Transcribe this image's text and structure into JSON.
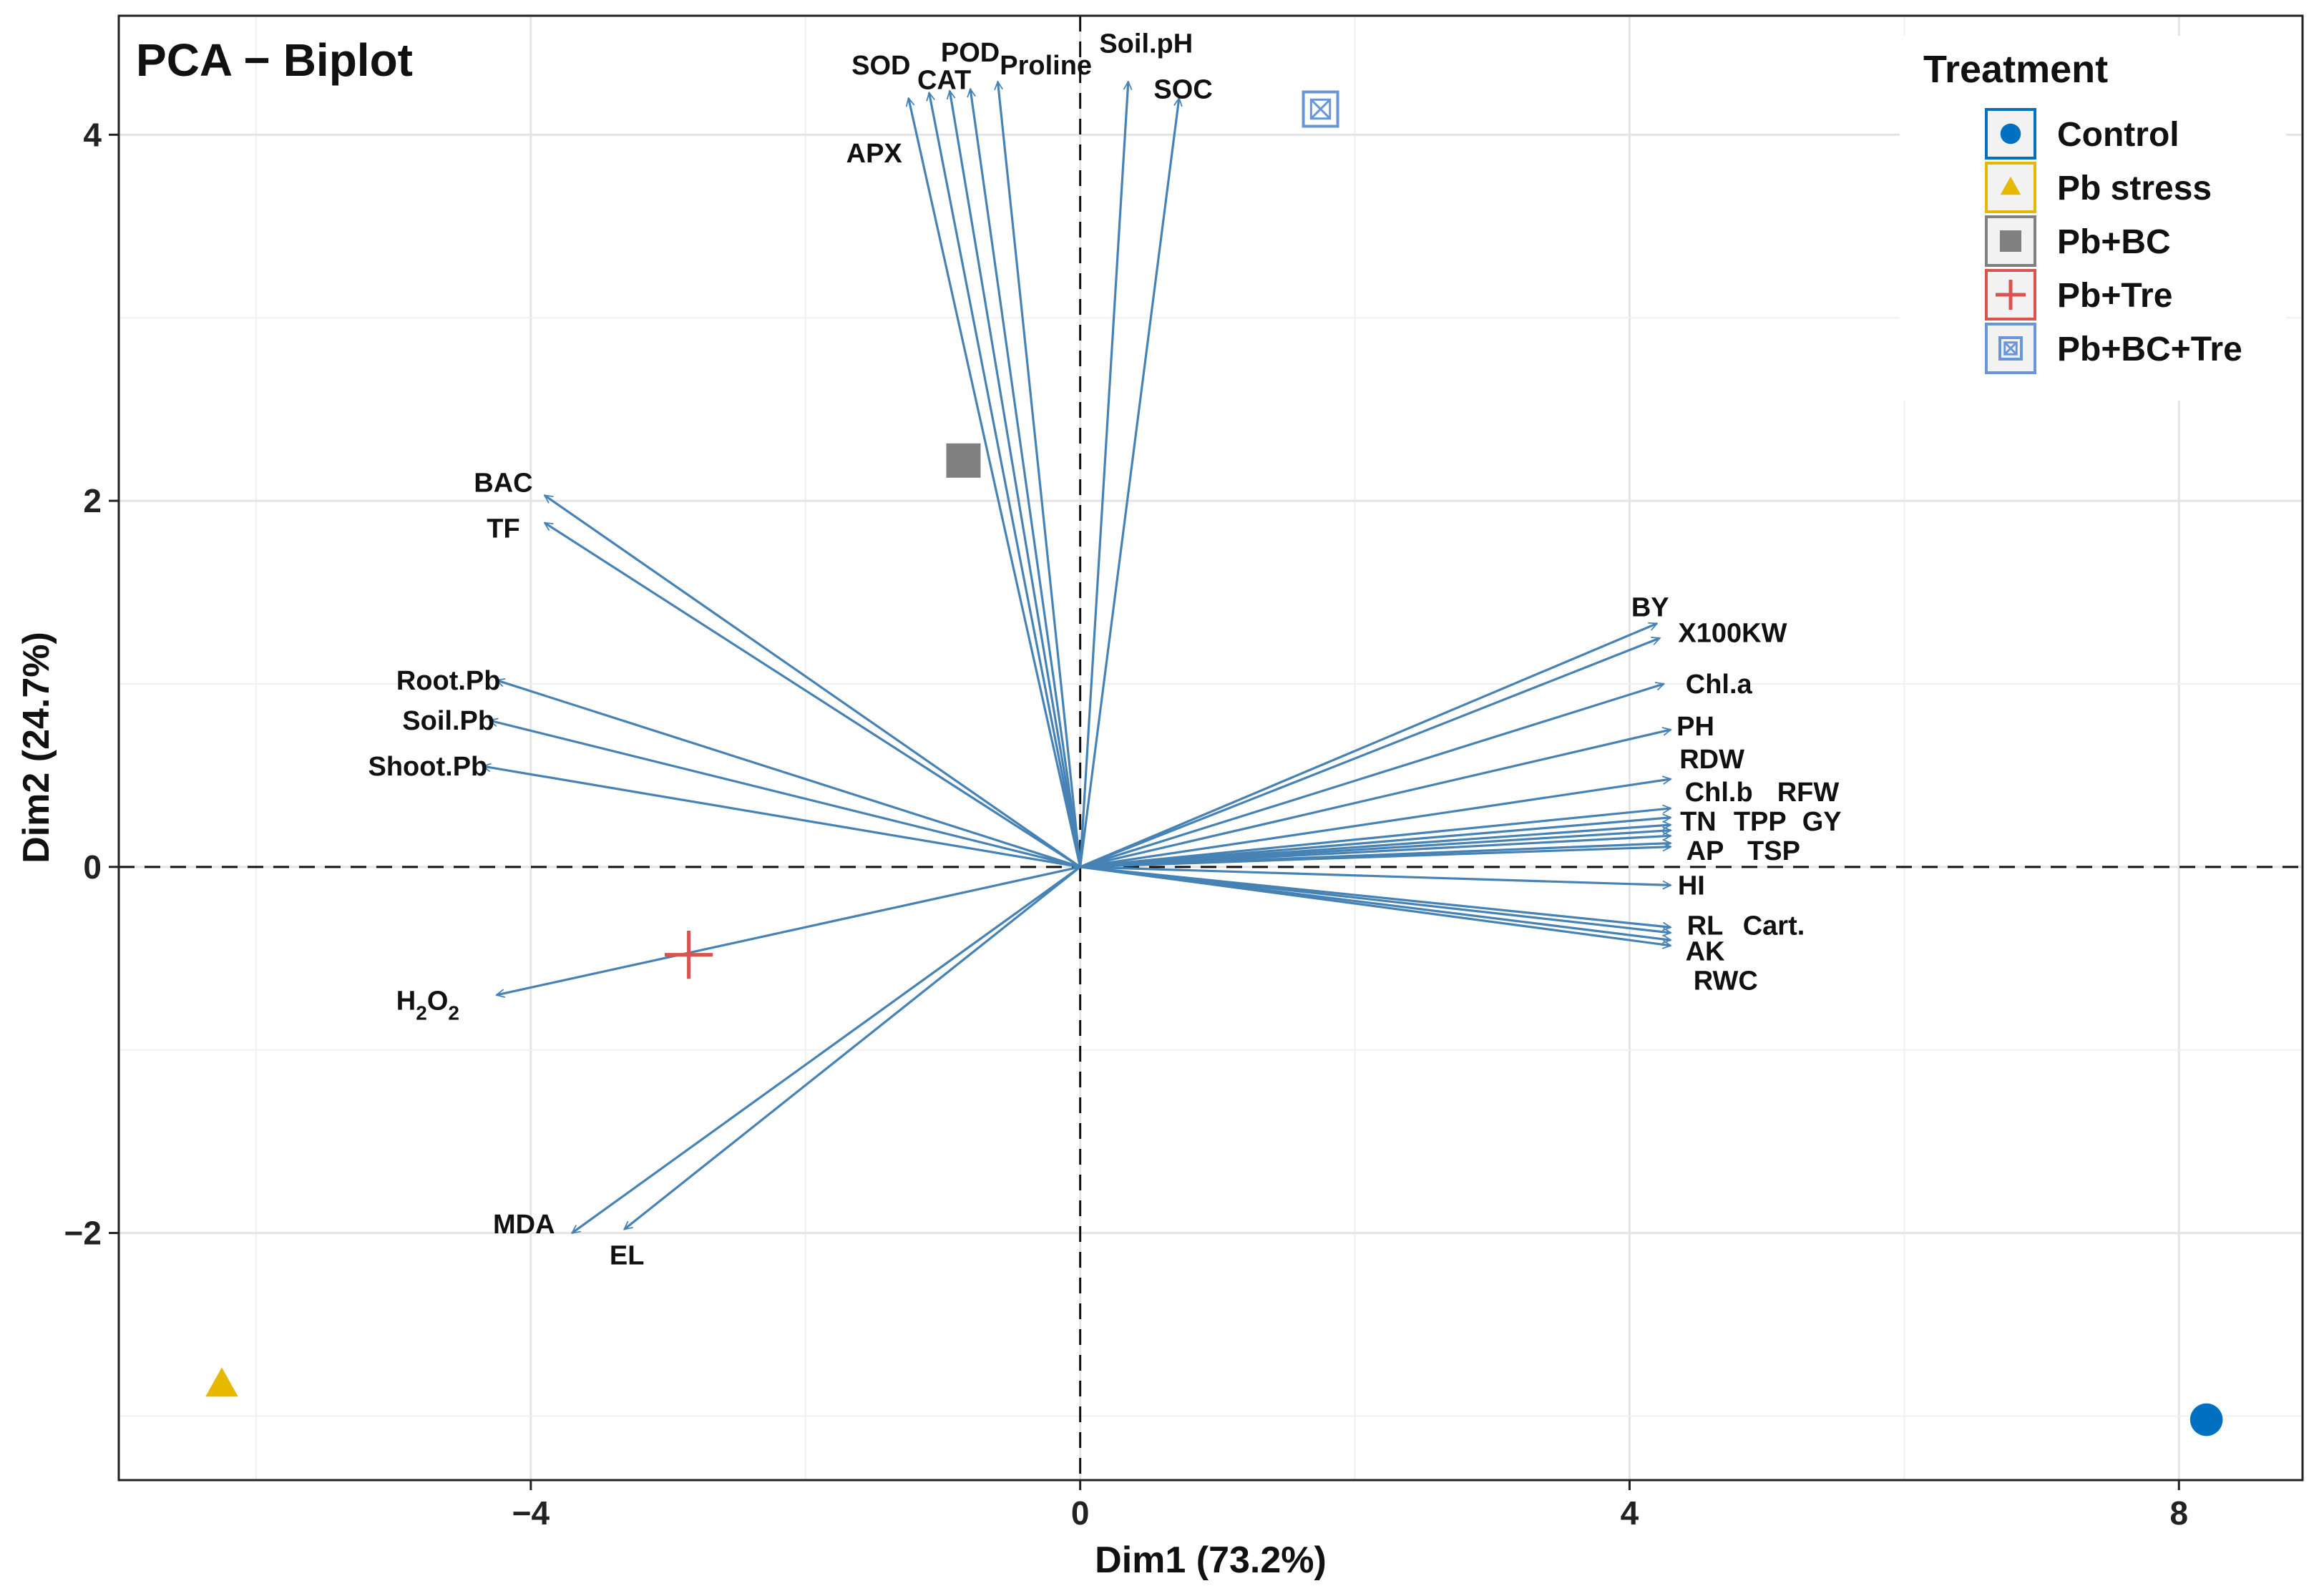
{
  "chart_data": {
    "type": "scatter",
    "subtype": "pca-biplot",
    "title": "PCA − Biplot",
    "xlabel": "Dim1 (73.2%)",
    "ylabel": "Dim2 (24.7%)",
    "xlim": [
      -7.0,
      8.9
    ],
    "ylim": [
      -3.35,
      4.65
    ],
    "x_ticks": [
      {
        "value": -4,
        "label": "−4"
      },
      {
        "value": 0,
        "label": "0"
      },
      {
        "value": 4,
        "label": "4"
      },
      {
        "value": 8,
        "label": "8"
      }
    ],
    "y_ticks": [
      {
        "value": -2,
        "label": "−2"
      },
      {
        "value": 0,
        "label": "0"
      },
      {
        "value": 2,
        "label": "2"
      },
      {
        "value": 4,
        "label": "4"
      }
    ],
    "grid": true,
    "reference_lines": {
      "x": 0,
      "y": 0,
      "style": "dashed"
    },
    "arrow_color": "#4682B4",
    "variables": [
      {
        "name": "SOD",
        "x": -1.25,
        "y": 4.2,
        "lx": -1.45,
        "ly": 4.38
      },
      {
        "name": "APX",
        "x": -1.1,
        "y": 4.23,
        "lx": -1.5,
        "ly": 3.9
      },
      {
        "name": "CAT",
        "x": -0.95,
        "y": 4.24,
        "lx": -0.99,
        "ly": 4.3
      },
      {
        "name": "POD",
        "x": -0.8,
        "y": 4.25,
        "lx": -0.8,
        "ly": 4.45
      },
      {
        "name": "Proline",
        "x": -0.6,
        "y": 4.29,
        "lx": -0.25,
        "ly": 4.38
      },
      {
        "name": "Soil.pH",
        "x": 0.35,
        "y": 4.29,
        "lx": 0.48,
        "ly": 4.5
      },
      {
        "name": "SOC",
        "x": 0.72,
        "y": 4.2,
        "lx": 0.75,
        "ly": 4.25
      },
      {
        "name": "BAC",
        "x": -3.9,
        "y": 2.03,
        "lx": -4.2,
        "ly": 2.1
      },
      {
        "name": "TF",
        "x": -3.9,
        "y": 1.88,
        "lx": -4.2,
        "ly": 1.85
      },
      {
        "name": "Root.Pb",
        "x": -4.25,
        "y": 1.02,
        "lx": -4.6,
        "ly": 1.02
      },
      {
        "name": "Soil.Pb",
        "x": -4.3,
        "y": 0.8,
        "lx": -4.6,
        "ly": 0.8
      },
      {
        "name": "Shoot.Pb",
        "x": -4.35,
        "y": 0.55,
        "lx": -4.75,
        "ly": 0.55
      },
      {
        "name": "MDA",
        "x": -3.7,
        "y": -2.0,
        "lx": -4.05,
        "ly": -1.95
      },
      {
        "name": "EL",
        "x": -3.32,
        "y": -1.98,
        "lx": -3.3,
        "ly": -2.12
      },
      {
        "name": "BY",
        "x": 4.2,
        "y": 1.33,
        "lx": 4.15,
        "ly": 1.42
      },
      {
        "name": "X100KW",
        "x": 4.22,
        "y": 1.25,
        "lx": 4.75,
        "ly": 1.28
      },
      {
        "name": "Chl.a",
        "x": 4.25,
        "y": 1.0,
        "lx": 4.65,
        "ly": 1.0
      },
      {
        "name": "PH",
        "x": 4.3,
        "y": 0.75,
        "lx": 4.48,
        "ly": 0.77
      },
      {
        "name": "RDW",
        "x": 4.3,
        "y": 0.48,
        "lx": 4.6,
        "ly": 0.59
      },
      {
        "name": "Chl.b",
        "x": 4.3,
        "y": 0.32,
        "lx": 4.65,
        "ly": 0.41
      },
      {
        "name": "RFW",
        "x": 4.3,
        "y": 0.27,
        "lx": 5.3,
        "ly": 0.41
      },
      {
        "name": "TN",
        "x": 4.3,
        "y": 0.23,
        "lx": 4.5,
        "ly": 0.25
      },
      {
        "name": "TPP",
        "x": 4.3,
        "y": 0.2,
        "lx": 4.95,
        "ly": 0.25
      },
      {
        "name": "GY",
        "x": 4.3,
        "y": 0.17,
        "lx": 5.4,
        "ly": 0.25
      },
      {
        "name": "AP",
        "x": 4.3,
        "y": 0.11,
        "lx": 4.55,
        "ly": 0.09
      },
      {
        "name": "TSP",
        "x": 4.3,
        "y": 0.13,
        "lx": 5.05,
        "ly": 0.09
      },
      {
        "name": "HI",
        "x": 4.3,
        "y": -0.1,
        "lx": 4.45,
        "ly": -0.1
      },
      {
        "name": "RL",
        "x": 4.3,
        "y": -0.33,
        "lx": 4.55,
        "ly": -0.32
      },
      {
        "name": "Cart.",
        "x": 4.3,
        "y": -0.36,
        "lx": 5.05,
        "ly": -0.32
      },
      {
        "name": "AK",
        "x": 4.3,
        "y": -0.4,
        "lx": 4.55,
        "ly": -0.46
      },
      {
        "name": "RWC",
        "x": 4.3,
        "y": -0.43,
        "lx": 4.7,
        "ly": -0.62
      },
      {
        "name": "H2O2",
        "x": -4.25,
        "y": -0.7,
        "lx": -4.75,
        "ly": -0.73,
        "label_main": "H",
        "label_sub1": "2",
        "label_mid": "O",
        "label_sub2": "2"
      }
    ],
    "series": [
      {
        "name": "Control",
        "marker": "circle",
        "color": "#0070C0",
        "x": 8.2,
        "y": -3.02
      },
      {
        "name": "Pb stress",
        "marker": "triangle",
        "color": "#E6B800",
        "x": -6.25,
        "y": -2.83
      },
      {
        "name": "Pb+BC",
        "marker": "square",
        "color": "#808080",
        "x": -0.85,
        "y": 2.22
      },
      {
        "name": "Pb+Tre",
        "marker": "plus",
        "color": "#D9534F",
        "x": -2.85,
        "y": -0.48
      },
      {
        "name": "Pb+BC+Tre",
        "marker": "boxed-cross",
        "color": "#6A96D8",
        "x": 1.75,
        "y": 4.14
      }
    ],
    "legend": {
      "title": "Treatment",
      "position": "top-right",
      "entries": [
        "Control",
        "Pb stress",
        "Pb+BC",
        "Pb+Tre",
        "Pb+BC+Tre"
      ]
    }
  }
}
